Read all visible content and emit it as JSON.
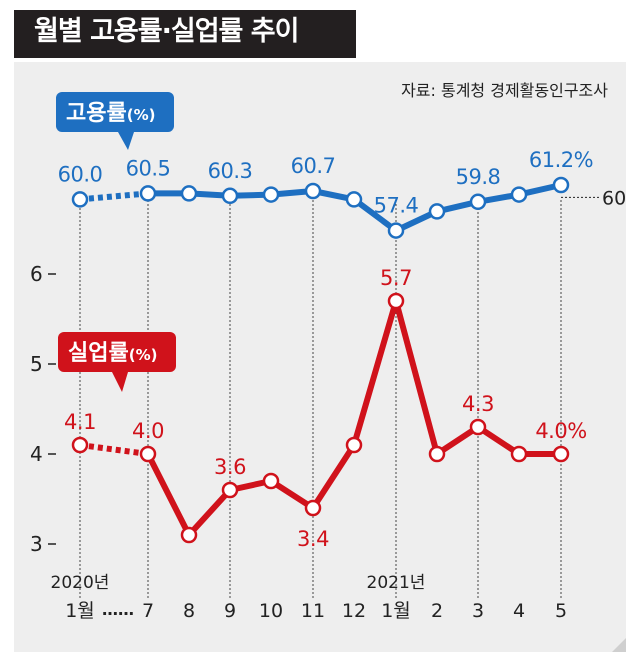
{
  "header": {
    "title": "월별 고용률·실업률 추이",
    "source": "자료: 통계청 경제활동인구조사"
  },
  "colors": {
    "employment": "#1e6fc1",
    "unemployment": "#d0121b",
    "title_bg": "#231f20",
    "panel_bg": "#eeeeee",
    "text": "#222222"
  },
  "chart_data": {
    "type": "line",
    "categories": [
      "1월",
      "7",
      "8",
      "9",
      "10",
      "11",
      "12",
      "1월",
      "2",
      "3",
      "4",
      "5"
    ],
    "year_labels": [
      {
        "index": 0,
        "text": "2020년"
      },
      {
        "index": 7,
        "text": "2021년"
      }
    ],
    "month_gap_marker": "……",
    "series": [
      {
        "name": "고용률",
        "unit": "(%)",
        "values": [
          60.0,
          60.5,
          60.5,
          60.3,
          60.4,
          60.7,
          60.0,
          57.4,
          59.0,
          59.8,
          60.4,
          61.2
        ],
        "data_labels": [
          {
            "index": 0,
            "text": "60.0"
          },
          {
            "index": 1,
            "text": "60.5"
          },
          {
            "index": 3,
            "text": "60.3"
          },
          {
            "index": 5,
            "text": "60.7"
          },
          {
            "index": 7,
            "text": "57.4"
          },
          {
            "index": 9,
            "text": "59.8"
          },
          {
            "index": 11,
            "text": "61.2%"
          }
        ],
        "reference_value": 60,
        "reference_label": "60",
        "dotted_segment": [
          0,
          1
        ]
      },
      {
        "name": "실업률",
        "unit": "(%)",
        "values": [
          4.1,
          4.0,
          3.1,
          3.6,
          3.7,
          3.4,
          4.1,
          5.7,
          4.0,
          4.3,
          4.0,
          4.0
        ],
        "data_labels": [
          {
            "index": 0,
            "text": "4.1"
          },
          {
            "index": 1,
            "text": "4.0"
          },
          {
            "index": 3,
            "text": "3.6"
          },
          {
            "index": 5,
            "text": "3.4"
          },
          {
            "index": 7,
            "text": "5.7"
          },
          {
            "index": 9,
            "text": "4.3"
          },
          {
            "index": 11,
            "text": "4.0%"
          }
        ],
        "dotted_segment": [
          0,
          1
        ]
      }
    ],
    "yticks": [
      6,
      5,
      4,
      3
    ],
    "ylim": [
      3,
      6
    ],
    "grid": "dotted vertical guides at labeled months"
  }
}
